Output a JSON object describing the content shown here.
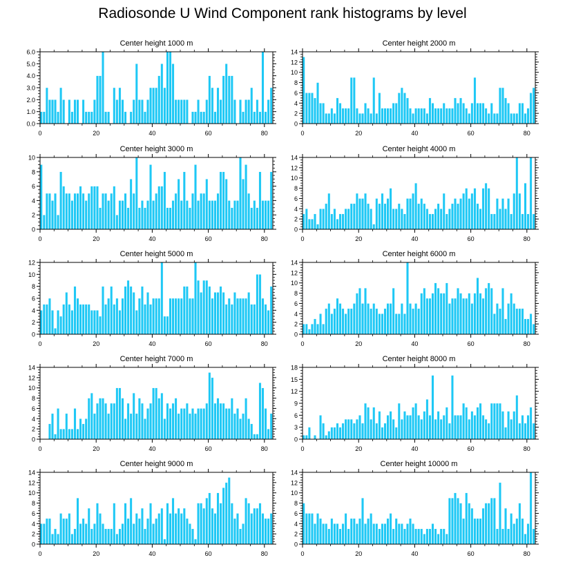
{
  "page": {
    "title": "Radiosonde U Wind Component rank histograms by level",
    "bar_color": "#1ec8f5",
    "bar_edge_color": "#ffffff",
    "frame_color": "#000000"
  },
  "chart_data": [
    {
      "type": "bar",
      "title": "Center height 1000 m",
      "xlim": [
        0,
        83
      ],
      "xticks": [
        0,
        20,
        40,
        60,
        80
      ],
      "ylim": [
        0,
        6
      ],
      "yticks": [
        0,
        1,
        2,
        3,
        4,
        5,
        6
      ],
      "ytick_decimals": 1,
      "values": [
        1,
        1,
        3,
        2,
        2,
        2,
        1,
        3,
        2,
        0,
        2,
        1,
        2,
        2,
        0,
        2,
        1,
        1,
        1,
        2,
        4,
        4,
        6,
        1,
        1,
        0,
        3,
        2,
        3,
        2,
        1,
        0,
        1,
        2,
        5,
        2,
        2,
        1,
        2,
        3,
        3,
        3,
        4,
        5,
        3,
        6,
        6,
        5,
        2,
        2,
        2,
        2,
        2,
        0,
        1,
        1,
        2,
        1,
        1,
        2,
        4,
        3,
        1,
        3,
        2,
        4,
        5,
        4,
        4,
        2,
        0,
        2,
        1,
        2,
        2,
        3,
        1,
        2,
        1,
        6,
        1,
        2,
        3
      ]
    },
    {
      "type": "bar",
      "title": "Center height 2000 m",
      "xlim": [
        0,
        83
      ],
      "xticks": [
        0,
        20,
        40,
        60,
        80
      ],
      "ylim": [
        0,
        14
      ],
      "yticks": [
        0,
        2,
        4,
        6,
        8,
        10,
        12,
        14
      ],
      "ytick_decimals": 0,
      "values": [
        13,
        6,
        6,
        6,
        5,
        8,
        4,
        4,
        2,
        2,
        3,
        2,
        5,
        4,
        3,
        3,
        3,
        9,
        9,
        3,
        2,
        2,
        4,
        3,
        2,
        9,
        2,
        6,
        3,
        3,
        3,
        3,
        4,
        4,
        6,
        7,
        6,
        5,
        3,
        2,
        3,
        3,
        3,
        3,
        2,
        5,
        4,
        3,
        3,
        3,
        4,
        3,
        3,
        3,
        5,
        4,
        5,
        4,
        3,
        2,
        4,
        9,
        4,
        4,
        4,
        3,
        2,
        4,
        2,
        2,
        7,
        7,
        5,
        4,
        2,
        2,
        2,
        4,
        4,
        2,
        3,
        6,
        7
      ]
    },
    {
      "type": "bar",
      "title": "Center height 3000 m",
      "xlim": [
        0,
        83
      ],
      "xticks": [
        0,
        20,
        40,
        60,
        80
      ],
      "ylim": [
        0,
        10
      ],
      "yticks": [
        0,
        2,
        4,
        6,
        8,
        10
      ],
      "ytick_decimals": 0,
      "values": [
        9,
        2,
        5,
        5,
        4,
        5,
        2,
        8,
        6,
        5,
        5,
        4,
        5,
        5,
        6,
        5,
        4,
        5,
        6,
        6,
        6,
        3,
        5,
        5,
        4,
        5,
        6,
        2,
        4,
        4,
        5,
        3,
        7,
        5,
        10,
        3,
        4,
        3,
        4,
        9,
        4,
        5,
        6,
        6,
        8,
        3,
        3,
        4,
        5,
        7,
        4,
        8,
        4,
        3,
        5,
        9,
        4,
        5,
        5,
        7,
        4,
        4,
        4,
        5,
        8,
        8,
        7,
        4,
        3,
        4,
        4,
        10,
        7,
        9,
        5,
        3,
        4,
        3,
        8,
        4,
        4,
        4,
        8
      ]
    },
    {
      "type": "bar",
      "title": "Center height 4000 m",
      "xlim": [
        0,
        83
      ],
      "xticks": [
        0,
        20,
        40,
        60,
        80
      ],
      "ylim": [
        0,
        14
      ],
      "yticks": [
        0,
        2,
        4,
        6,
        8,
        10,
        12,
        14
      ],
      "ytick_decimals": 0,
      "values": [
        3,
        4,
        2,
        2,
        3,
        1,
        4,
        4,
        5,
        7,
        3,
        4,
        2,
        3,
        3,
        4,
        4,
        5,
        5,
        7,
        6,
        6,
        7,
        5,
        4,
        1,
        6,
        5,
        7,
        5,
        6,
        8,
        4,
        4,
        5,
        4,
        3,
        6,
        6,
        7,
        9,
        5,
        6,
        5,
        4,
        3,
        3,
        4,
        5,
        4,
        7,
        3,
        4,
        5,
        6,
        5,
        6,
        7,
        8,
        6,
        7,
        8,
        5,
        4,
        8,
        9,
        8,
        3,
        3,
        6,
        4,
        6,
        4,
        6,
        3,
        7,
        14,
        7,
        3,
        9,
        3,
        14,
        3
      ]
    },
    {
      "type": "bar",
      "title": "Center height 5000 m",
      "xlim": [
        0,
        83
      ],
      "xticks": [
        0,
        20,
        40,
        60,
        80
      ],
      "ylim": [
        0,
        12
      ],
      "yticks": [
        0,
        2,
        4,
        6,
        8,
        10,
        12
      ],
      "ytick_decimals": 0,
      "values": [
        4,
        5,
        5,
        6,
        4,
        1,
        4,
        3,
        5,
        7,
        5,
        4,
        8,
        6,
        5,
        5,
        5,
        5,
        4,
        4,
        4,
        3,
        8,
        5,
        6,
        8,
        5,
        6,
        4,
        6,
        8,
        9,
        8,
        7,
        4,
        6,
        8,
        5,
        7,
        5,
        6,
        6,
        6,
        12,
        3,
        3,
        6,
        6,
        6,
        6,
        6,
        8,
        8,
        6,
        6,
        12,
        9,
        7,
        9,
        9,
        8,
        6,
        7,
        7,
        8,
        7,
        5,
        6,
        5,
        7,
        6,
        6,
        6,
        6,
        7,
        5,
        5,
        10,
        10,
        6,
        5,
        4,
        8
      ]
    },
    {
      "type": "bar",
      "title": "Center height 6000 m",
      "xlim": [
        0,
        83
      ],
      "xticks": [
        0,
        20,
        40,
        60,
        80
      ],
      "ylim": [
        0,
        14
      ],
      "yticks": [
        0,
        2,
        4,
        6,
        8,
        10,
        12,
        14
      ],
      "ytick_decimals": 0,
      "values": [
        2,
        2,
        1,
        2,
        3,
        2,
        4,
        2,
        5,
        6,
        4,
        5,
        7,
        6,
        5,
        4,
        5,
        5,
        6,
        8,
        9,
        6,
        9,
        6,
        5,
        6,
        5,
        4,
        4,
        5,
        6,
        6,
        9,
        4,
        4,
        6,
        4,
        14,
        6,
        5,
        6,
        5,
        8,
        9,
        7,
        7,
        8,
        10,
        9,
        8,
        8,
        10,
        6,
        7,
        7,
        9,
        8,
        7,
        7,
        8,
        6,
        8,
        11,
        8,
        7,
        9,
        10,
        9,
        4,
        6,
        5,
        9,
        3,
        6,
        8,
        6,
        5,
        5,
        5,
        3,
        3,
        4,
        2
      ]
    },
    {
      "type": "bar",
      "title": "Center height 7000 m",
      "xlim": [
        0,
        83
      ],
      "xticks": [
        0,
        20,
        40,
        60,
        80
      ],
      "ylim": [
        0,
        14
      ],
      "yticks": [
        0,
        2,
        4,
        6,
        8,
        10,
        12,
        14
      ],
      "ytick_decimals": 0,
      "values": [
        0,
        0,
        0,
        3,
        5,
        1,
        6,
        2,
        2,
        5,
        2,
        2,
        6,
        2,
        4,
        3,
        4,
        8,
        9,
        5,
        7,
        8,
        8,
        7,
        5,
        7,
        7,
        10,
        10,
        8,
        4,
        7,
        5,
        9,
        5,
        8,
        7,
        4,
        6,
        7,
        10,
        10,
        8,
        9,
        4,
        7,
        6,
        7,
        8,
        5,
        6,
        6,
        7,
        5,
        6,
        5,
        6,
        6,
        6,
        7,
        13,
        12,
        7,
        8,
        7,
        7,
        6,
        6,
        8,
        5,
        6,
        4,
        5,
        8,
        4,
        3,
        1,
        1,
        11,
        10,
        6,
        2,
        5
      ]
    },
    {
      "type": "bar",
      "title": "Center height 8000 m",
      "xlim": [
        0,
        83
      ],
      "xticks": [
        0,
        20,
        40,
        60,
        80
      ],
      "ylim": [
        0,
        18
      ],
      "yticks": [
        0,
        3,
        6,
        9,
        12,
        15,
        18
      ],
      "ytick_decimals": 0,
      "values": [
        1,
        1,
        3,
        0,
        1,
        0,
        6,
        4,
        1,
        2,
        3,
        3,
        4,
        3,
        4,
        5,
        5,
        5,
        4,
        5,
        6,
        4,
        9,
        8,
        5,
        8,
        4,
        7,
        3,
        4,
        6,
        7,
        5,
        3,
        9,
        5,
        7,
        6,
        6,
        8,
        9,
        6,
        5,
        7,
        10,
        6,
        16,
        5,
        7,
        5,
        6,
        8,
        4,
        16,
        6,
        6,
        6,
        9,
        8,
        5,
        7,
        6,
        8,
        9,
        6,
        5,
        4,
        9,
        9,
        9,
        9,
        7,
        3,
        7,
        5,
        7,
        11,
        4,
        6,
        4,
        6,
        8,
        4
      ]
    },
    {
      "type": "bar",
      "title": "Center height 9000 m",
      "xlim": [
        0,
        83
      ],
      "xticks": [
        0,
        20,
        40,
        60,
        80
      ],
      "ylim": [
        0,
        14
      ],
      "yticks": [
        0,
        2,
        4,
        6,
        8,
        10,
        12,
        14
      ],
      "ytick_decimals": 0,
      "values": [
        4,
        4,
        5,
        5,
        2,
        3,
        2,
        6,
        5,
        5,
        6,
        2,
        3,
        9,
        4,
        5,
        4,
        7,
        3,
        4,
        8,
        6,
        4,
        3,
        3,
        3,
        8,
        2,
        3,
        4,
        8,
        5,
        9,
        4,
        6,
        5,
        7,
        3,
        5,
        8,
        4,
        5,
        6,
        7,
        1,
        8,
        6,
        9,
        6,
        7,
        6,
        7,
        5,
        4,
        3,
        1,
        8,
        8,
        7,
        9,
        10,
        7,
        6,
        10,
        8,
        11,
        12,
        13,
        8,
        5,
        6,
        3,
        4,
        9,
        8,
        6,
        7,
        7,
        8,
        6,
        5,
        5,
        6
      ]
    },
    {
      "type": "bar",
      "title": "Center height 10000 m",
      "xlim": [
        0,
        83
      ],
      "xticks": [
        0,
        20,
        40,
        60,
        80
      ],
      "ylim": [
        0,
        14
      ],
      "yticks": [
        0,
        2,
        4,
        6,
        8,
        10,
        12,
        14
      ],
      "ytick_decimals": 0,
      "values": [
        8,
        6,
        6,
        6,
        4,
        6,
        5,
        4,
        4,
        3,
        5,
        4,
        4,
        3,
        4,
        6,
        3,
        5,
        5,
        4,
        5,
        9,
        4,
        5,
        6,
        4,
        4,
        3,
        4,
        4,
        5,
        6,
        3,
        5,
        4,
        4,
        3,
        4,
        5,
        4,
        3,
        3,
        3,
        2,
        3,
        3,
        4,
        3,
        2,
        3,
        3,
        2,
        9,
        9,
        10,
        9,
        8,
        5,
        10,
        8,
        7,
        5,
        5,
        5,
        7,
        8,
        8,
        9,
        9,
        3,
        12,
        3,
        7,
        3,
        6,
        4,
        5,
        8,
        5,
        2,
        4,
        14,
        3
      ]
    }
  ]
}
